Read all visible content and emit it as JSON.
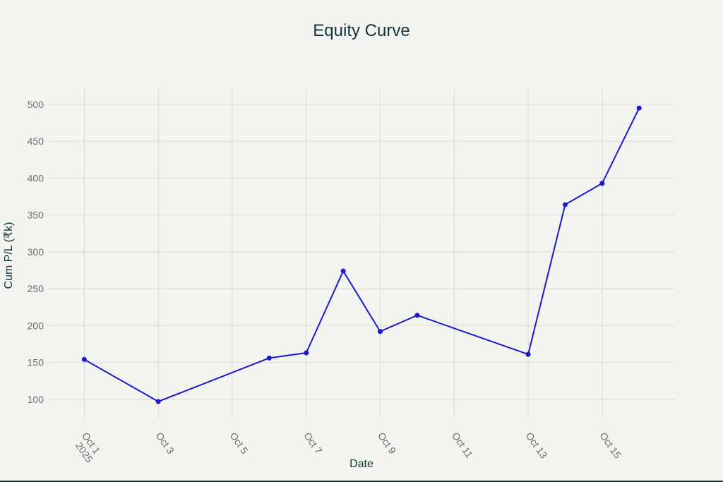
{
  "chart_data": {
    "type": "line",
    "title": "Equity Curve",
    "xlabel": "Date",
    "ylabel": "Cum P/L (₹k)",
    "x_tick_labels": [
      "Oct 1",
      "Oct 3",
      "Oct 5",
      "Oct 7",
      "Oct 9",
      "Oct 11",
      "Oct 13",
      "Oct 15"
    ],
    "x_tick_sublabel": "2025",
    "x_tick_days": [
      1,
      3,
      5,
      7,
      9,
      11,
      13,
      15
    ],
    "y_ticks": [
      100,
      150,
      200,
      250,
      300,
      350,
      400,
      450,
      500
    ],
    "y_tick_labels": [
      "100",
      "150",
      "200",
      "250",
      "300",
      "350",
      "400",
      "450",
      "500"
    ],
    "xlim_day": [
      0.0,
      16.95
    ],
    "ylim": [
      74,
      521
    ],
    "grid": true,
    "series": [
      {
        "color": "#1a1acc",
        "x": [
          "2025-10-01",
          "2025-10-03",
          "2025-10-06",
          "2025-10-07",
          "2025-10-08",
          "2025-10-09",
          "2025-10-10",
          "2025-10-13",
          "2025-10-14",
          "2025-10-15",
          "2025-10-16"
        ],
        "values": [
          154,
          97,
          156,
          163,
          274,
          192,
          214,
          161,
          364,
          393,
          495
        ]
      }
    ]
  }
}
